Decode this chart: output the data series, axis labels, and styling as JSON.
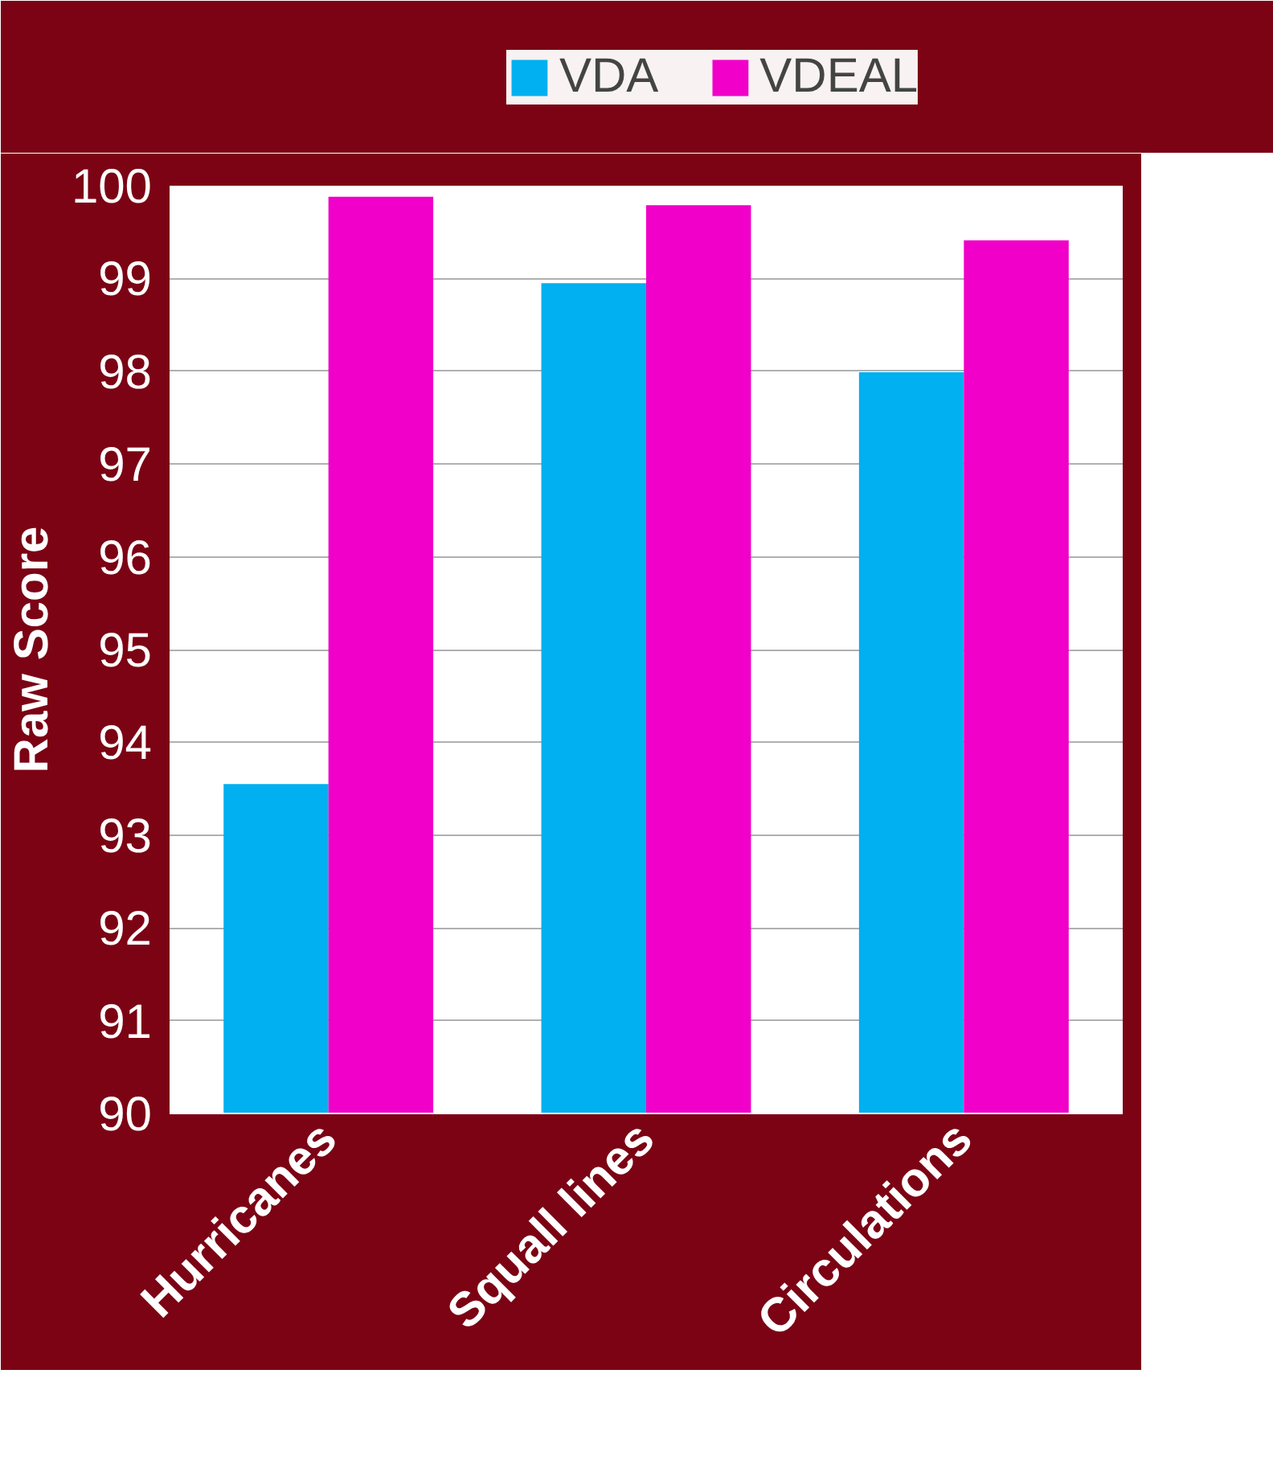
{
  "chart_data": {
    "type": "bar",
    "categories": [
      "Hurricanes",
      "Squall lines",
      "Circulations"
    ],
    "series": [
      {
        "name": "VDA",
        "color": "#00b0f0",
        "values": [
          93.55,
          98.95,
          97.99
        ]
      },
      {
        "name": "VDEAL",
        "color": "#f000c8",
        "values": [
          99.88,
          99.79,
          99.41
        ]
      }
    ],
    "ylabel": "Raw Score",
    "ylim": [
      90,
      100
    ],
    "yticks": [
      90,
      91,
      92,
      93,
      94,
      95,
      96,
      97,
      98,
      99,
      100
    ],
    "grid": "y",
    "legend": "top"
  }
}
